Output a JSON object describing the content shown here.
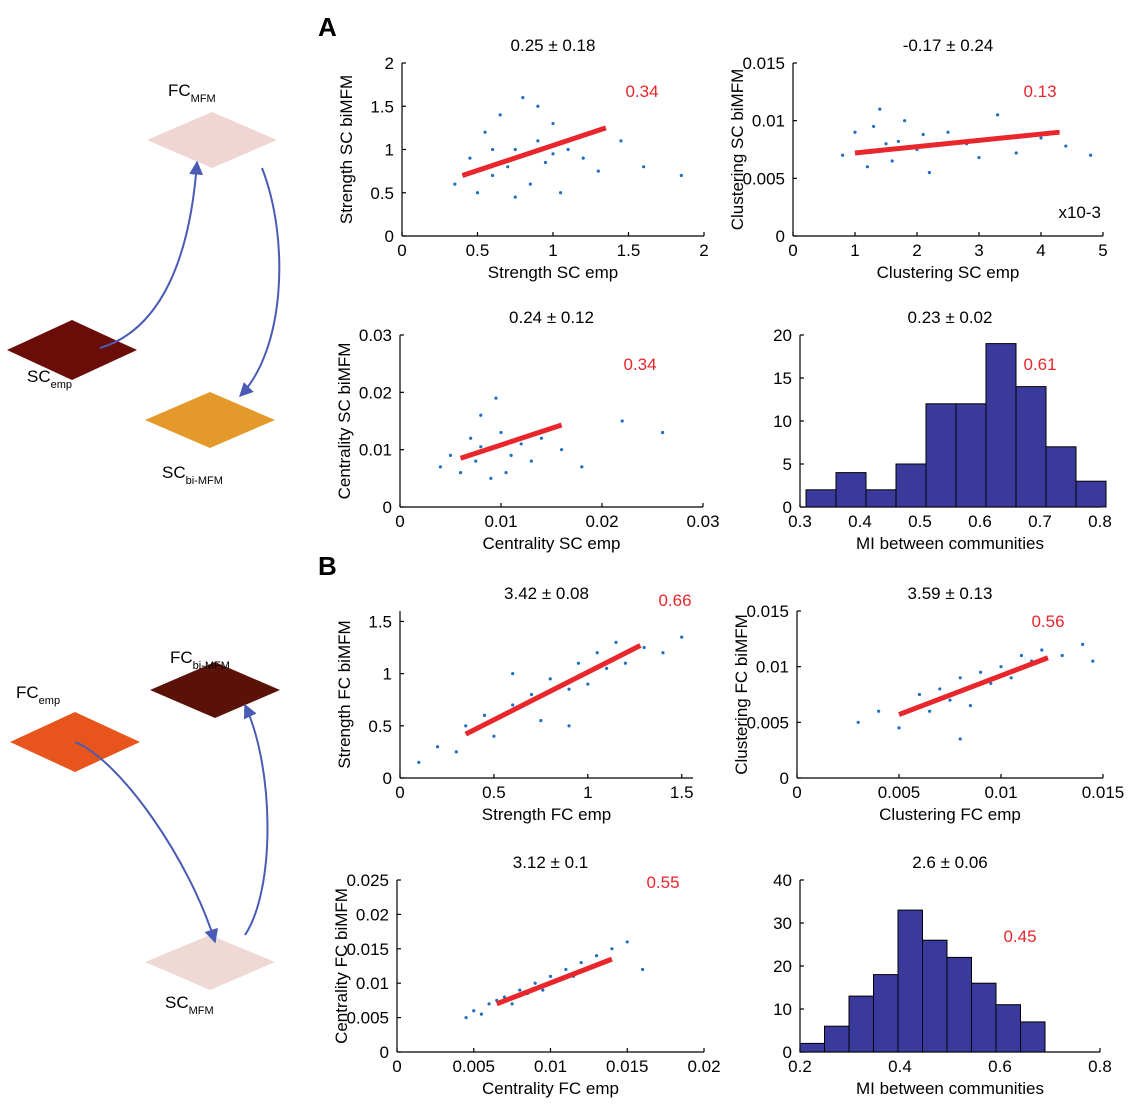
{
  "panels": [
    "A",
    "B"
  ],
  "diagram": {
    "labels": [
      {
        "main": "FC",
        "sub": "MFM"
      },
      {
        "main": "SC",
        "sub": "emp"
      },
      {
        "main": "SC",
        "sub": "bi-MFM"
      },
      {
        "main": "FC",
        "sub": "bi-MFM"
      },
      {
        "main": "FC",
        "sub": "emp"
      },
      {
        "main": "SC",
        "sub": "MFM"
      }
    ]
  },
  "chart_data": [
    {
      "type": "scatter",
      "title": "0.25 ± 0.18",
      "annotation": "0.34",
      "xlabel": "Strength SC emp",
      "ylabel": "Strength SC biMFM",
      "color": "#1f6fc0",
      "x": [
        0.35,
        0.45,
        0.5,
        0.55,
        0.6,
        0.65,
        0.7,
        0.75,
        0.8,
        0.85,
        0.9,
        0.95,
        1.0,
        1.05,
        1.1,
        1.2,
        1.3,
        1.45,
        1.6,
        1.85,
        0.6,
        0.75,
        0.9,
        1.0
      ],
      "y": [
        0.6,
        0.9,
        0.5,
        1.2,
        0.7,
        1.4,
        0.8,
        1.0,
        1.6,
        0.6,
        1.1,
        0.85,
        1.3,
        0.5,
        1.0,
        0.9,
        0.75,
        1.1,
        0.8,
        0.7,
        1.0,
        0.45,
        1.5,
        0.95
      ],
      "fit": {
        "color": "#e8262b",
        "x": [
          0.4,
          1.35
        ],
        "y": [
          0.7,
          1.25
        ]
      },
      "xlim": [
        0,
        2
      ],
      "xticks": [
        0,
        0.5,
        1,
        1.5,
        2
      ],
      "ylim": [
        0,
        2
      ],
      "yticks": [
        0,
        0.5,
        1,
        1.5,
        2
      ]
    },
    {
      "type": "scatter",
      "title": "-0.17 ± 0.24",
      "annotation": "0.13",
      "axis_note": "x10-3",
      "xlabel": "Clustering SC emp",
      "ylabel": "Clustering SC biMFM",
      "color": "#1f6fc0",
      "x": [
        0.8,
        1.0,
        1.2,
        1.4,
        1.5,
        1.6,
        1.8,
        2.0,
        2.2,
        2.5,
        2.8,
        3.0,
        3.3,
        3.6,
        4.0,
        4.4,
        4.8,
        1.3,
        1.7,
        2.1
      ],
      "y": [
        0.007,
        0.009,
        0.006,
        0.011,
        0.008,
        0.0065,
        0.01,
        0.0075,
        0.0055,
        0.009,
        0.008,
        0.0068,
        0.0105,
        0.0072,
        0.0085,
        0.0078,
        0.007,
        0.0095,
        0.0082,
        0.0088
      ],
      "fit": {
        "color": "#e8262b",
        "x": [
          1,
          4.3
        ],
        "y": [
          0.0072,
          0.009
        ]
      },
      "xlim": [
        0,
        5
      ],
      "xticks": [
        0,
        1,
        2,
        3,
        4,
        5
      ],
      "ylim": [
        0,
        0.015
      ],
      "yticks": [
        0,
        0.005,
        0.01,
        0.015
      ]
    },
    {
      "type": "scatter",
      "title": "0.24 ± 0.12",
      "annotation": "0.34",
      "xlabel": "Centrality SC emp",
      "ylabel": "Centrality SC biMFM",
      "color": "#1f6fc0",
      "x": [
        0.004,
        0.005,
        0.006,
        0.007,
        0.0075,
        0.008,
        0.0085,
        0.009,
        0.01,
        0.011,
        0.012,
        0.013,
        0.014,
        0.016,
        0.018,
        0.022,
        0.026,
        0.0095,
        0.0105,
        0.008
      ],
      "y": [
        0.007,
        0.009,
        0.006,
        0.012,
        0.008,
        0.016,
        0.01,
        0.005,
        0.013,
        0.009,
        0.011,
        0.008,
        0.012,
        0.01,
        0.007,
        0.015,
        0.013,
        0.019,
        0.006,
        0.0105
      ],
      "fit": {
        "color": "#e8262b",
        "x": [
          0.006,
          0.016
        ],
        "y": [
          0.0085,
          0.0143
        ]
      },
      "xlim": [
        0,
        0.03
      ],
      "xticks": [
        0,
        0.01,
        0.02,
        0.03
      ],
      "ylim": [
        0,
        0.03
      ],
      "yticks": [
        0,
        0.01,
        0.02,
        0.03
      ]
    },
    {
      "type": "histogram",
      "title": "0.23 ± 0.02",
      "annotation": "0.61",
      "xlabel": "MI between communities",
      "color": "#3a3a9c",
      "bins": [
        0.31,
        0.36,
        0.41,
        0.46,
        0.51,
        0.56,
        0.61,
        0.66,
        0.71,
        0.76,
        0.81
      ],
      "values": [
        2,
        4,
        2,
        5,
        12,
        12,
        19,
        14,
        7,
        3
      ],
      "xlim": [
        0.3,
        0.8
      ],
      "xticks": [
        0.3,
        0.4,
        0.5,
        0.6,
        0.7,
        0.8
      ],
      "ylim": [
        0,
        20
      ],
      "yticks": [
        0,
        5,
        10,
        15,
        20
      ]
    },
    {
      "type": "scatter",
      "title": "3.42 ± 0.08",
      "annotation": "0.66",
      "xlabel": "Strength FC emp",
      "ylabel": "Strength FC biMFM",
      "color": "#1f6fc0",
      "x": [
        0.1,
        0.2,
        0.3,
        0.35,
        0.45,
        0.5,
        0.6,
        0.7,
        0.75,
        0.8,
        0.9,
        0.95,
        1.0,
        1.05,
        1.1,
        1.15,
        1.2,
        1.3,
        1.4,
        1.5,
        0.6,
        0.9
      ],
      "y": [
        0.15,
        0.3,
        0.25,
        0.5,
        0.6,
        0.4,
        0.7,
        0.8,
        0.55,
        0.95,
        0.85,
        1.1,
        0.9,
        1.2,
        1.05,
        1.3,
        1.1,
        1.25,
        1.2,
        1.35,
        1.0,
        0.5
      ],
      "fit": {
        "color": "#e8262b",
        "x": [
          0.35,
          1.28
        ],
        "y": [
          0.42,
          1.27
        ]
      },
      "xlim": [
        0,
        1.56
      ],
      "xticks": [
        0,
        0.5,
        1,
        1.5
      ],
      "ylim": [
        0,
        1.6
      ],
      "yticks": [
        0,
        0.5,
        1,
        1.5
      ]
    },
    {
      "type": "scatter",
      "title": "3.59 ± 0.13",
      "annotation": "0.56",
      "xlabel": "Clustering FC emp",
      "ylabel": "Clustering FC biMFM",
      "color": "#1f6fc0",
      "x": [
        0.003,
        0.004,
        0.005,
        0.006,
        0.0065,
        0.007,
        0.0075,
        0.008,
        0.0085,
        0.009,
        0.0095,
        0.01,
        0.0105,
        0.011,
        0.0115,
        0.012,
        0.013,
        0.014,
        0.0145,
        0.008
      ],
      "y": [
        0.005,
        0.006,
        0.0045,
        0.0075,
        0.006,
        0.008,
        0.007,
        0.009,
        0.0065,
        0.0095,
        0.0085,
        0.01,
        0.009,
        0.011,
        0.0105,
        0.0115,
        0.011,
        0.012,
        0.0105,
        0.0035
      ],
      "fit": {
        "color": "#e8262b",
        "x": [
          0.005,
          0.0123
        ],
        "y": [
          0.0057,
          0.0108
        ]
      },
      "xlim": [
        0,
        0.015
      ],
      "xticks": [
        0,
        0.005,
        0.01,
        0.015
      ],
      "ylim": [
        0,
        0.015
      ],
      "yticks": [
        0,
        0.005,
        0.01,
        0.015
      ]
    },
    {
      "type": "scatter",
      "title": "3.12 ± 0.1",
      "annotation": "0.55",
      "xlabel": "Centrality FC emp",
      "ylabel": "Centrality FC biMFM",
      "color": "#1f6fc0",
      "x": [
        0.0045,
        0.005,
        0.0055,
        0.006,
        0.0065,
        0.007,
        0.0075,
        0.008,
        0.0085,
        0.009,
        0.0095,
        0.01,
        0.0105,
        0.011,
        0.0115,
        0.012,
        0.013,
        0.014,
        0.015,
        0.016
      ],
      "y": [
        0.005,
        0.006,
        0.0055,
        0.007,
        0.0075,
        0.008,
        0.007,
        0.009,
        0.0085,
        0.01,
        0.009,
        0.011,
        0.0105,
        0.012,
        0.011,
        0.013,
        0.014,
        0.015,
        0.016,
        0.012
      ],
      "fit": {
        "color": "#e8262b",
        "x": [
          0.0065,
          0.014
        ],
        "y": [
          0.007,
          0.0135
        ]
      },
      "xlim": [
        0,
        0.02
      ],
      "xticks": [
        0,
        0.005,
        0.01,
        0.015,
        0.02
      ],
      "ylim": [
        0,
        0.025
      ],
      "yticks": [
        0,
        0.005,
        0.01,
        0.015,
        0.02,
        0.025
      ]
    },
    {
      "type": "histogram",
      "title": "2.6 ± 0.06",
      "annotation": "0.45",
      "xlabel": "MI between communities",
      "color": "#3a3a9c",
      "bins": [
        0.2,
        0.249,
        0.298,
        0.347,
        0.396,
        0.445,
        0.494,
        0.543,
        0.592,
        0.641,
        0.69
      ],
      "values": [
        2,
        6,
        13,
        18,
        33,
        26,
        22,
        16,
        11,
        7
      ],
      "xlim": [
        0.2,
        0.8
      ],
      "xticks": [
        0.2,
        0.4,
        0.6,
        0.8
      ],
      "ylim": [
        0,
        40
      ],
      "yticks": [
        0,
        10,
        20,
        30,
        40
      ]
    }
  ]
}
